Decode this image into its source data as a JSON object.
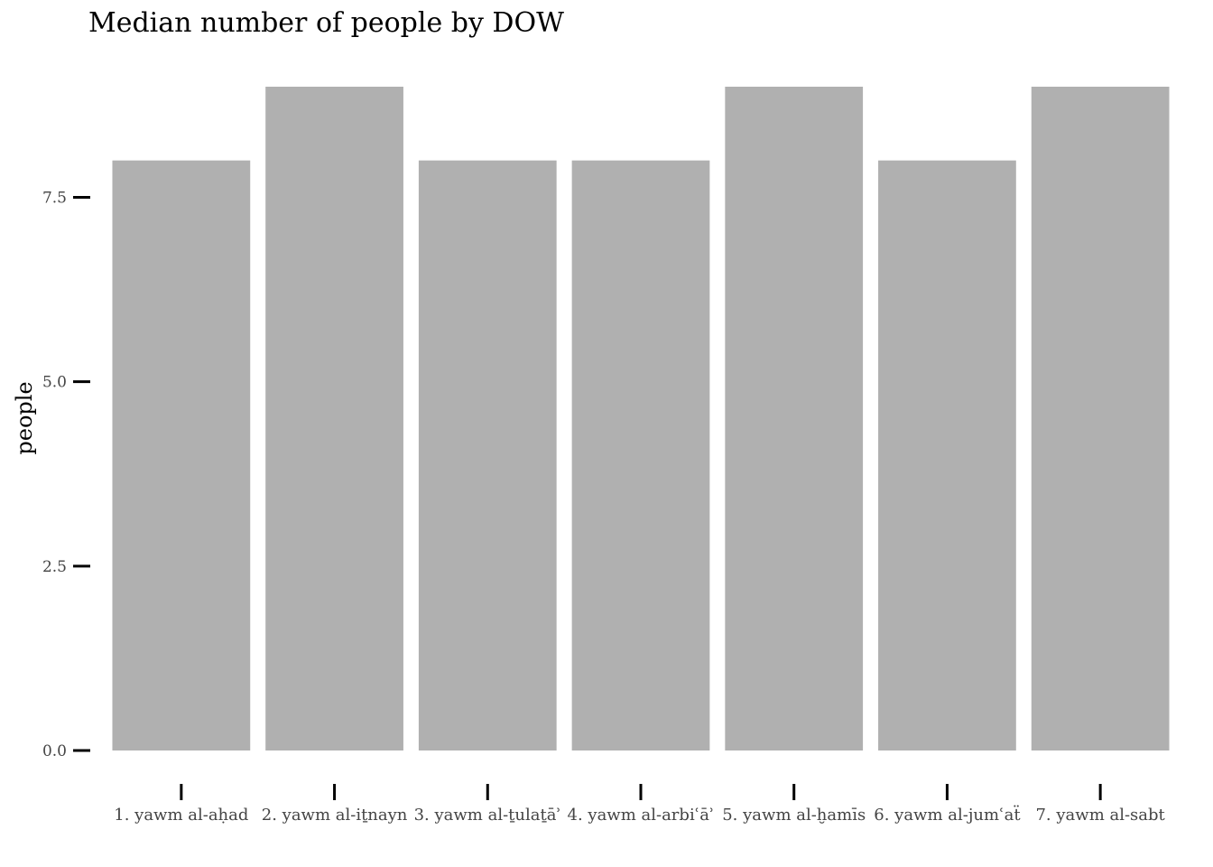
{
  "chart_data": {
    "type": "bar",
    "title": "Median number of people by DOW",
    "xlabel": "",
    "ylabel": "people",
    "categories": [
      "1. yawm al-aḥad",
      "2. yawm al-iṯnayn",
      "3. yawm al-ṯulaṯāʾ",
      "4. yawm al-arbiʿāʾ",
      "5. yawm al-ḫamīs",
      "6. yawm al-jumʿaẗ",
      "7. yawm al-sabt"
    ],
    "values": [
      8,
      9,
      8,
      8,
      9,
      8,
      9
    ],
    "ylim": [
      0,
      9
    ],
    "yticks": [
      0,
      2.5,
      5,
      7.5
    ],
    "ytick_labels": [
      "0.0",
      "2.5",
      "5.0",
      "7.5"
    ],
    "grid": false,
    "bar_color": "#b0b0b0",
    "tick_color": "#000000"
  }
}
